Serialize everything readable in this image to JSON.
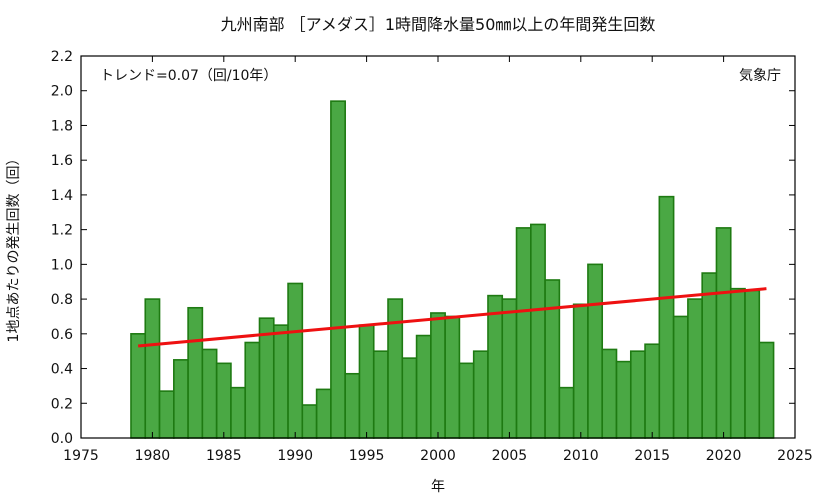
{
  "chart_data": {
    "type": "bar",
    "title": "九州南部 ［アメダス］1時間降水量50㎜以上の年間発生回数",
    "xlabel": "年",
    "ylabel": "1地点あたりの発生回数（回）",
    "annotation_trend": "トレンド=0.07（回/10年）",
    "annotation_source": "気象庁",
    "xlim": [
      1975,
      2025
    ],
    "ylim": [
      0.0,
      2.2
    ],
    "x_ticks": [
      "1975",
      "1980",
      "1985",
      "1990",
      "1995",
      "2000",
      "2005",
      "2010",
      "2015",
      "2020",
      "2025"
    ],
    "y_ticks": [
      "0.0",
      "0.2",
      "0.4",
      "0.6",
      "0.8",
      "1.0",
      "1.2",
      "1.4",
      "1.6",
      "1.8",
      "2.0",
      "2.2"
    ],
    "grid": false,
    "bar_color": "#4aa844",
    "bar_edge_color": "#1e7a12",
    "trend_color": "#ee1111",
    "years": [
      1979,
      1980,
      1981,
      1982,
      1983,
      1984,
      1985,
      1986,
      1987,
      1988,
      1989,
      1990,
      1991,
      1992,
      1993,
      1994,
      1995,
      1996,
      1997,
      1998,
      1999,
      2000,
      2001,
      2002,
      2003,
      2004,
      2005,
      2006,
      2007,
      2008,
      2009,
      2010,
      2011,
      2012,
      2013,
      2014,
      2015,
      2016,
      2017,
      2018,
      2019,
      2020,
      2021,
      2022,
      2023
    ],
    "values": [
      0.6,
      0.8,
      0.27,
      0.45,
      0.75,
      0.51,
      0.43,
      0.29,
      0.55,
      0.69,
      0.65,
      0.89,
      0.19,
      0.28,
      1.94,
      0.37,
      0.65,
      0.5,
      0.8,
      0.46,
      0.59,
      0.72,
      0.7,
      0.43,
      0.5,
      0.82,
      0.8,
      1.21,
      1.23,
      0.91,
      0.29,
      0.77,
      1.0,
      0.51,
      0.44,
      0.5,
      0.54,
      1.39,
      0.7,
      0.8,
      0.95,
      1.21,
      0.86,
      0.85,
      0.55
    ],
    "trend": {
      "x": [
        1979,
        2023
      ],
      "y": [
        0.53,
        0.86
      ]
    }
  }
}
